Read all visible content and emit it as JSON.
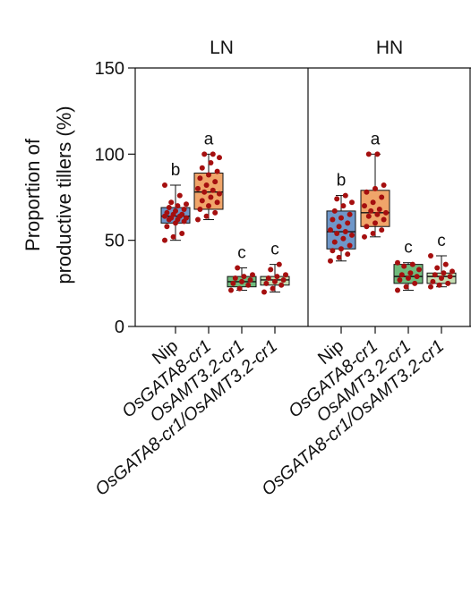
{
  "chart_data": {
    "type": "box",
    "title": "",
    "ylabel_lines": [
      "Proportion of",
      "productive tillers (%)"
    ],
    "xlabel": "",
    "ylim": [
      0,
      150
    ],
    "yticks": [
      0,
      50,
      100,
      150
    ],
    "grid": false,
    "genotypes": [
      "Nip",
      "OsGATA8-cr1",
      "OsAMT3.2-cr1",
      "OsGATA8-cr1/OsAMT3.2-cr1"
    ],
    "colors": {
      "Nip": "#6f97c9",
      "OsGATA8-cr1": "#f0a56a",
      "OsAMT3.2-cr1": "#6fbb7c",
      "OsGATA8-cr1/OsAMT3.2-cr1": "#c4ddb2",
      "points": "#a50f0f"
    },
    "panels": [
      {
        "name": "LN",
        "boxes": [
          {
            "genotype": "Nip",
            "letter": "b",
            "min": 50,
            "q1": 60,
            "median": 64,
            "q3": 69,
            "max": 82,
            "points": [
              50,
              52,
              54,
              58,
              60,
              61,
              62,
              62,
              63,
              63,
              64,
              64,
              65,
              65,
              66,
              67,
              68,
              69,
              70,
              71,
              72,
              76,
              82
            ]
          },
          {
            "genotype": "OsGATA8-cr1",
            "letter": "a",
            "min": 62,
            "q1": 68,
            "median": 78,
            "q3": 89,
            "max": 100,
            "points": [
              62,
              64,
              66,
              68,
              70,
              72,
              73,
              75,
              77,
              78,
              79,
              80,
              82,
              84,
              86,
              88,
              90,
              92,
              95,
              98,
              100,
              100
            ]
          },
          {
            "genotype": "OsAMT3.2-cr1",
            "letter": "c",
            "min": 21,
            "q1": 23,
            "median": 26,
            "q3": 29,
            "max": 34,
            "points": [
              21,
              22,
              24,
              25,
              26,
              27,
              28,
              29,
              30,
              34
            ]
          },
          {
            "genotype": "OsGATA8-cr1/OsAMT3.2-cr1",
            "letter": "c",
            "min": 20,
            "q1": 24,
            "median": 27,
            "q3": 29,
            "max": 36,
            "points": [
              20,
              22,
              24,
              25,
              26,
              27,
              28,
              29,
              30,
              33,
              36
            ]
          }
        ]
      },
      {
        "name": "HN",
        "boxes": [
          {
            "genotype": "Nip",
            "letter": "b",
            "min": 38,
            "q1": 45,
            "median": 55,
            "q3": 67,
            "max": 76,
            "points": [
              38,
              40,
              42,
              44,
              45,
              47,
              49,
              51,
              53,
              54,
              55,
              56,
              58,
              60,
              62,
              63,
              65,
              67,
              70,
              72,
              74,
              76
            ]
          },
          {
            "genotype": "OsGATA8-cr1",
            "letter": "a",
            "min": 52,
            "q1": 58,
            "median": 66,
            "q3": 79,
            "max": 100,
            "points": [
              52,
              54,
              56,
              58,
              60,
              62,
              64,
              65,
              66,
              67,
              68,
              70,
              72,
              75,
              78,
              80,
              82,
              100,
              100
            ]
          },
          {
            "genotype": "OsAMT3.2-cr1",
            "letter": "c",
            "min": 21,
            "q1": 25,
            "median": 29,
            "q3": 36,
            "max": 37,
            "points": [
              21,
              23,
              25,
              27,
              28,
              29,
              30,
              31,
              33,
              35,
              36,
              37
            ]
          },
          {
            "genotype": "OsGATA8-cr1/OsAMT3.2-cr1",
            "letter": "c",
            "min": 23,
            "q1": 25,
            "median": 29,
            "q3": 31,
            "max": 41,
            "points": [
              23,
              24,
              25,
              26,
              28,
              29,
              30,
              31,
              32,
              34,
              36,
              41
            ]
          }
        ]
      }
    ]
  }
}
